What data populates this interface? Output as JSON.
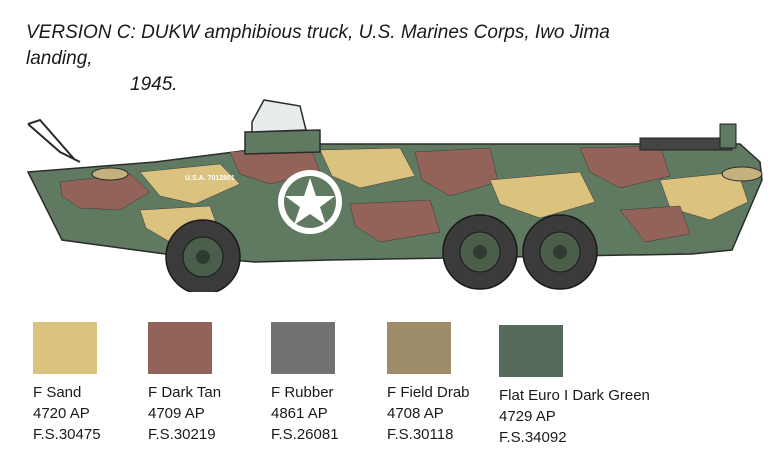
{
  "caption": {
    "line1": "VERSION C: DUKW amphibious truck, U.S. Marines Corps, Iwo Jima landing,",
    "line2": "1945."
  },
  "vehicle": {
    "serial": "U.S.A. 7012801"
  },
  "swatches": [
    {
      "name": "F Sand",
      "code": "4720 AP",
      "fs": "F.S.30475",
      "color": "#DCC27F"
    },
    {
      "name": "F Dark Tan",
      "code": "4709 AP",
      "fs": "F.S.30219",
      "color": "#93635A"
    },
    {
      "name": "F Rubber",
      "code": "4861 AP",
      "fs": "F.S.26081",
      "color": "#717274"
    },
    {
      "name": "F Field Drab",
      "code": "4708 AP",
      "fs": "F.S.30118",
      "color": "#9E8B69"
    },
    {
      "name": "Flat Euro I Dark Green",
      "code": "4729 AP",
      "fs": "F.S.34092",
      "color": "#556B5C"
    }
  ]
}
